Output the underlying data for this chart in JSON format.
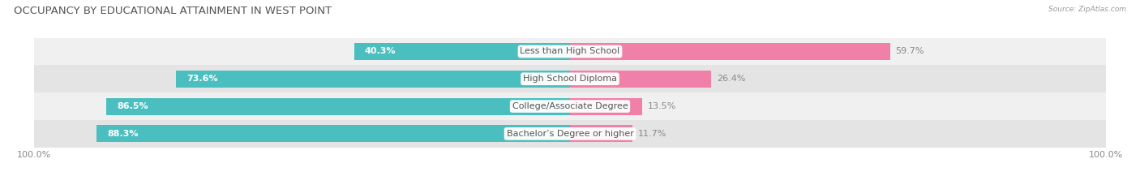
{
  "title": "OCCUPANCY BY EDUCATIONAL ATTAINMENT IN WEST POINT",
  "source": "Source: ZipAtlas.com",
  "categories": [
    "Less than High School",
    "High School Diploma",
    "College/Associate Degree",
    "Bachelor’s Degree or higher"
  ],
  "owner_pct": [
    40.3,
    73.6,
    86.5,
    88.3
  ],
  "renter_pct": [
    59.7,
    26.4,
    13.5,
    11.7
  ],
  "owner_color": "#4bbfbf",
  "renter_color": "#f080a8",
  "row_bg_colors": [
    "#f0f0f0",
    "#e4e4e4"
  ],
  "title_color": "#555555",
  "source_color": "#999999",
  "pct_label_color_inside": "#ffffff",
  "pct_label_color_outside": "#888888",
  "cat_label_color": "#555555",
  "title_fontsize": 9.5,
  "label_fontsize": 8,
  "tick_fontsize": 8,
  "legend_fontsize": 8,
  "bar_height": 0.62,
  "figsize": [
    14.06,
    2.33
  ],
  "dpi": 100
}
